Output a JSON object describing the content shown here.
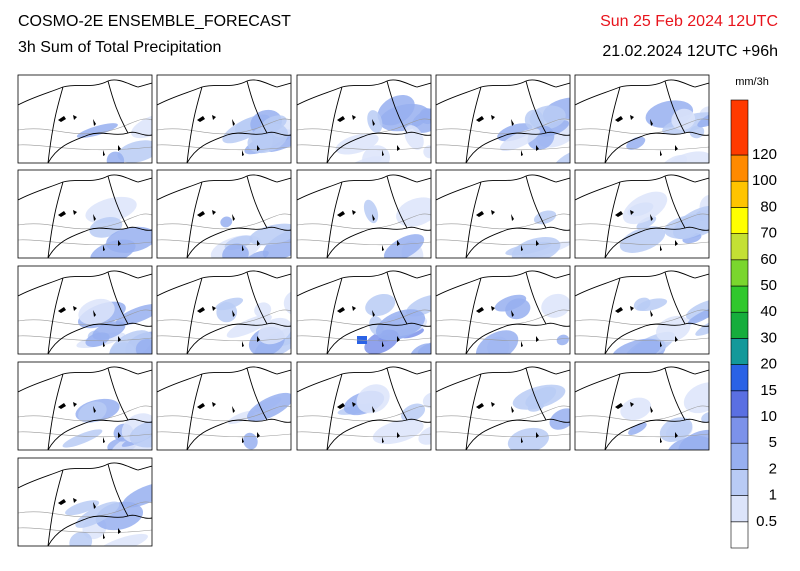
{
  "header": {
    "title": "COSMO-2E ENSEMBLE_FORECAST",
    "subtitle": "3h Sum of Total Precipitation",
    "valid_time": "Sun 25 Feb 2024 12UTC",
    "run": "21.02.2024 12UTC +96h"
  },
  "colorbar": {
    "unit": "mm/3h",
    "labels": [
      0.5,
      1,
      2,
      5,
      10,
      15,
      20,
      30,
      40,
      50,
      60,
      70,
      80,
      100,
      120
    ],
    "colors": [
      "#ffffff",
      "#dce4fa",
      "#b9cbf5",
      "#97aff0",
      "#7c92ea",
      "#5a6fe2",
      "#2a62e6",
      "#13999a",
      "#16ad3c",
      "#30c82c",
      "#7ad62e",
      "#c4e034",
      "#ffff00",
      "#ffc400",
      "#ff8a00",
      "#ff3a00"
    ]
  }
}
